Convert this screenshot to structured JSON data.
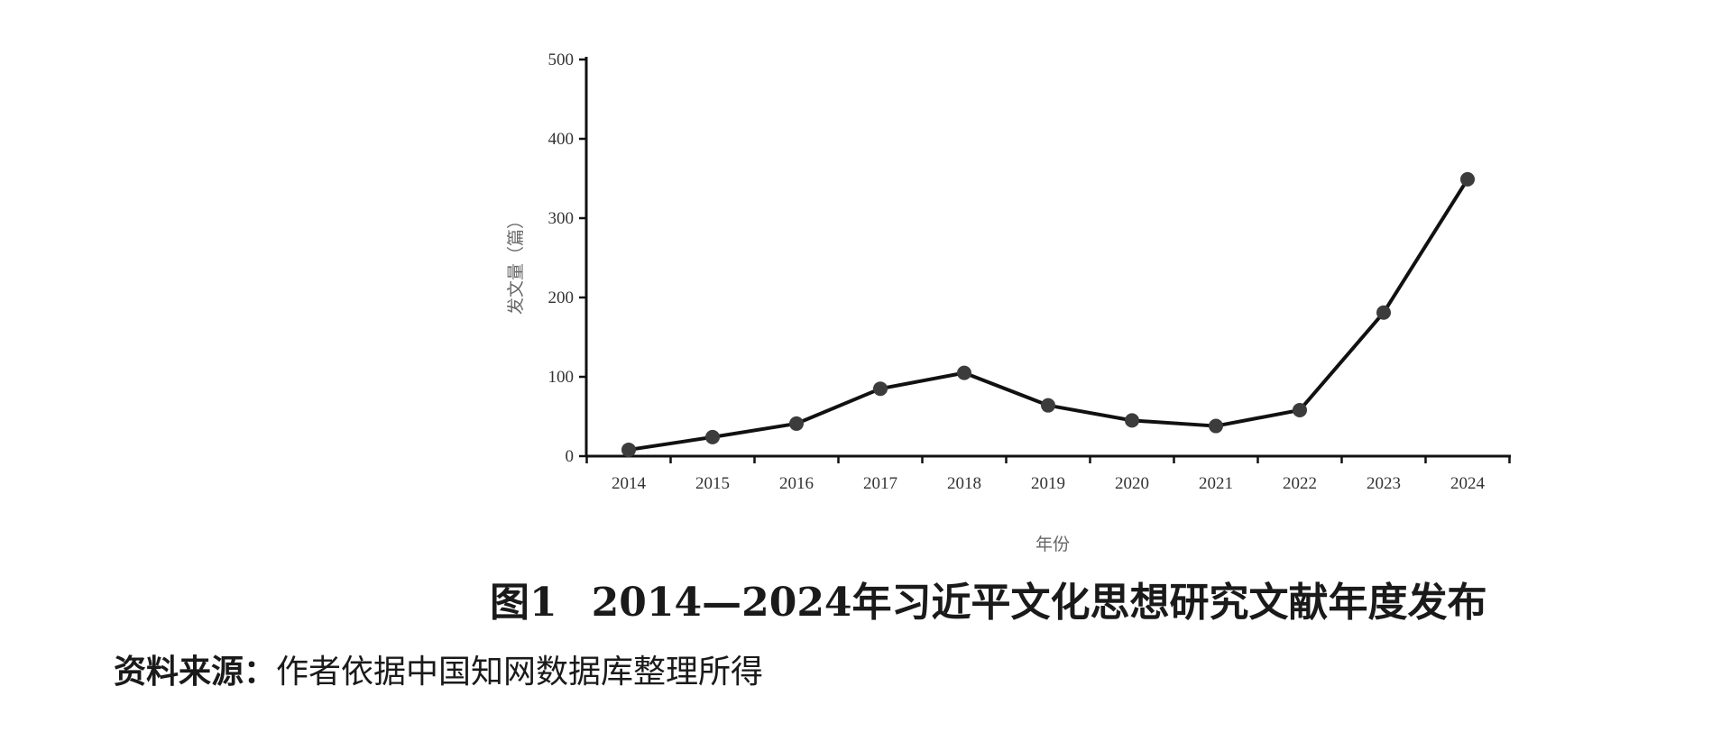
{
  "chart_data": {
    "type": "line",
    "x": [
      "2014",
      "2015",
      "2016",
      "2017",
      "2018",
      "2019",
      "2020",
      "2021",
      "2022",
      "2023",
      "2024"
    ],
    "series": [
      {
        "values": [
          8,
          24,
          41,
          85,
          105,
          64,
          45,
          38,
          58,
          181,
          349
        ]
      }
    ],
    "xlabel": "年份",
    "ylabel": "发文量（篇）",
    "ylim": [
      0,
      500
    ],
    "yticks": [
      0,
      100,
      200,
      300,
      400,
      500
    ],
    "grid": false,
    "colors": {
      "line": "#111111",
      "marker": "#3c3c3c",
      "axis": "#111111"
    }
  },
  "caption": {
    "figure_number": "图1",
    "title": "2014—2024年习近平文化思想研究文献年度发布"
  },
  "source": {
    "label": "资料来源：",
    "text": "作者依据中国知网数据库整理所得"
  }
}
